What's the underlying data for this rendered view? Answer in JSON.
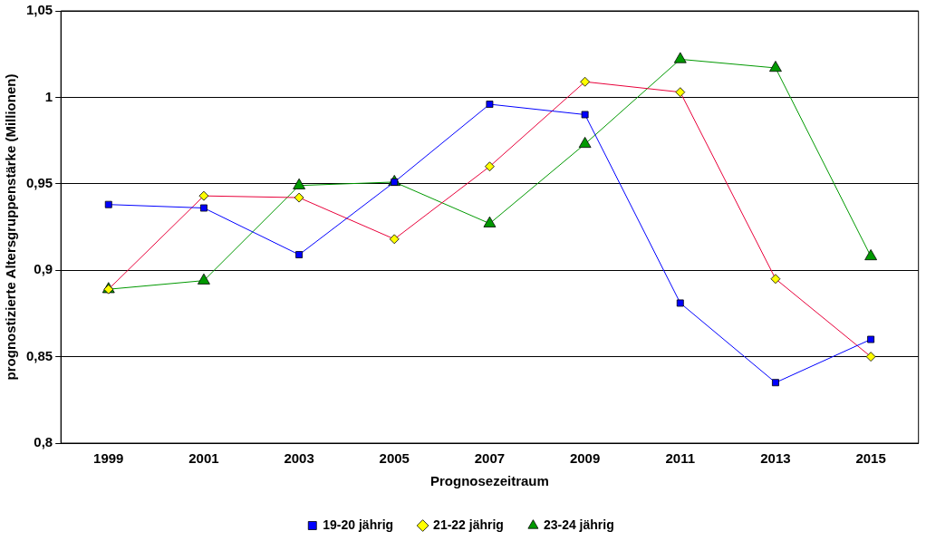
{
  "chart_data": {
    "type": "line",
    "xlabel": "Prognosezeitraum",
    "ylabel": "prognostizierte Altersgruppenstärke (Millionen)",
    "categories": [
      "1999",
      "2001",
      "2003",
      "2005",
      "2007",
      "2009",
      "2011",
      "2013",
      "2015"
    ],
    "series": [
      {
        "name": "19-20 jährig",
        "color": "#0000ff",
        "marker": "square",
        "values": [
          0.938,
          0.936,
          0.909,
          0.951,
          0.996,
          0.99,
          0.881,
          0.835,
          0.86
        ]
      },
      {
        "name": "21-22 jährig",
        "color": "#e8003a",
        "marker": "diamond",
        "colors": [
          "#ffff00",
          "#ffff00",
          "#ffff00",
          "#ffff00",
          "#ffff00",
          "#ffff00",
          "#ffff00",
          "#ffff00",
          "#ffff00"
        ],
        "values": [
          0.889,
          0.943,
          0.942,
          0.918,
          0.96,
          1.009,
          1.003,
          0.895,
          0.85
        ]
      },
      {
        "name": "23-24 jährig",
        "color": "#009900",
        "marker": "triangle",
        "values": [
          0.889,
          0.894,
          0.949,
          0.951,
          0.927,
          0.973,
          1.022,
          1.017,
          0.908
        ]
      }
    ],
    "ylim": [
      0.8,
      1.05
    ],
    "yticks": [
      {
        "value": 0.8,
        "label": "0,8"
      },
      {
        "value": 0.85,
        "label": "0,85"
      },
      {
        "value": 0.9,
        "label": "0,9"
      },
      {
        "value": 0.95,
        "label": "0,95"
      },
      {
        "value": 1,
        "label": "1"
      },
      {
        "value": 1.05,
        "label": "1,05"
      }
    ],
    "grid": "y",
    "legend": "bottom",
    "line_style": "solid"
  }
}
